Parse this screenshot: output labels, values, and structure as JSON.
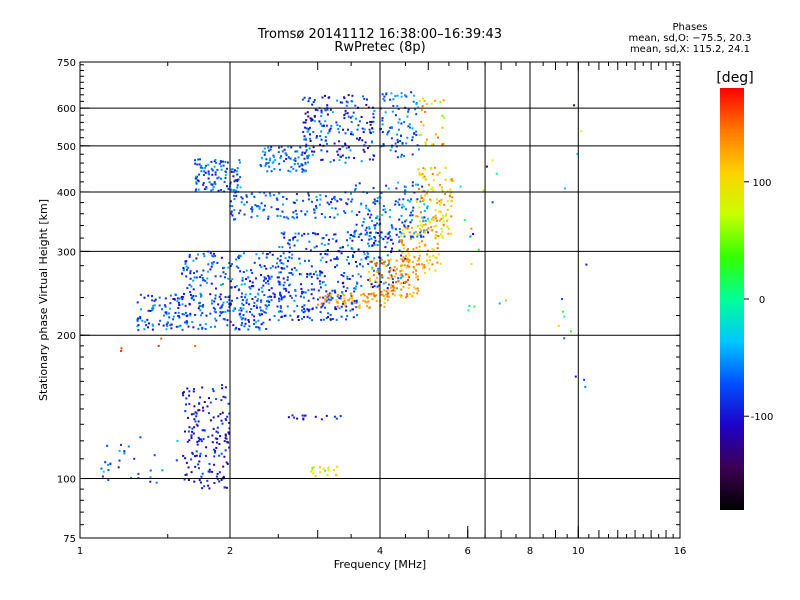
{
  "chart_data": {
    "type": "scatter",
    "title": "Tromsø 20141112 16:38:00–16:39:43",
    "subtitle": "RwPretec (8p)",
    "xlabel": "Frequency [MHz]",
    "ylabel": "Stationary phase Virtual Height [km]",
    "x_scale": "log",
    "y_scale": "log",
    "xlim": [
      1,
      16
    ],
    "ylim": [
      75,
      750
    ],
    "x_ticks": [
      1,
      2,
      4,
      6,
      8,
      10,
      16
    ],
    "y_ticks": [
      75,
      100,
      200,
      300,
      400,
      500,
      600,
      750
    ],
    "x_grid": [
      2,
      4,
      6.5,
      8,
      10
    ],
    "y_grid": [
      100,
      200,
      300,
      400,
      500,
      600
    ],
    "grid": true,
    "colorbar": {
      "label": "[deg]",
      "range": [
        -180,
        180
      ],
      "ticks": [
        100,
        0,
        -100
      ],
      "colors": [
        "#000000",
        "#3c0050",
        "#1e00c8",
        "#0050ff",
        "#00c8ff",
        "#00ff96",
        "#32ff00",
        "#c8ff00",
        "#ffd200",
        "#ff7800",
        "#ff0000"
      ]
    },
    "stats": {
      "heading": "Phases",
      "line_o": "mean, sd,O: −75.5, 20.3",
      "line_x": "mean, sd,X: 115.2, 24.1"
    },
    "clusters": [
      {
        "f": [
          1.3,
          2.4
        ],
        "h": [
          205,
          245
        ],
        "n": 260,
        "phase": [
          -110,
          -40
        ]
      },
      {
        "f": [
          1.6,
          2.6
        ],
        "h": [
          240,
          300
        ],
        "n": 180,
        "phase": [
          -110,
          -40
        ]
      },
      {
        "f": [
          2.4,
          3.6
        ],
        "h": [
          215,
          250
        ],
        "n": 140,
        "phase": [
          -110,
          -50
        ]
      },
      {
        "f": [
          2.5,
          4.5
        ],
        "h": [
          250,
          330
        ],
        "n": 260,
        "phase": [
          -120,
          -40
        ]
      },
      {
        "f": [
          3.0,
          4.2
        ],
        "h": [
          228,
          245
        ],
        "n": 70,
        "phase": [
          110,
          150
        ]
      },
      {
        "f": [
          3.8,
          4.8
        ],
        "h": [
          240,
          290
        ],
        "n": 110,
        "phase": [
          100,
          160
        ]
      },
      {
        "f": [
          4.4,
          5.3
        ],
        "h": [
          270,
          340
        ],
        "n": 90,
        "phase": [
          90,
          150
        ]
      },
      {
        "f": [
          4.7,
          5.6
        ],
        "h": [
          320,
          450
        ],
        "n": 120,
        "phase": [
          60,
          150
        ]
      },
      {
        "f": [
          3.5,
          5.0
        ],
        "h": [
          320,
          420
        ],
        "n": 150,
        "phase": [
          -100,
          -30
        ]
      },
      {
        "f": [
          2.0,
          3.5
        ],
        "h": [
          350,
          400
        ],
        "n": 120,
        "phase": [
          -100,
          -40
        ]
      },
      {
        "f": [
          1.7,
          2.1
        ],
        "h": [
          400,
          470
        ],
        "n": 110,
        "phase": [
          -110,
          -40
        ]
      },
      {
        "f": [
          2.3,
          2.9
        ],
        "h": [
          440,
          500
        ],
        "n": 80,
        "phase": [
          -100,
          -40
        ]
      },
      {
        "f": [
          2.8,
          3.9
        ],
        "h": [
          460,
          640
        ],
        "n": 200,
        "phase": [
          -130,
          -40
        ]
      },
      {
        "f": [
          4.0,
          4.8
        ],
        "h": [
          470,
          650
        ],
        "n": 90,
        "phase": [
          -100,
          -40
        ]
      },
      {
        "f": [
          4.8,
          5.4
        ],
        "h": [
          500,
          630
        ],
        "n": 30,
        "phase": [
          50,
          150
        ]
      },
      {
        "f": [
          1.6,
          2.0
        ],
        "h": [
          95,
          158
        ],
        "n": 170,
        "phase": [
          -130,
          -70
        ]
      },
      {
        "f": [
          1.1,
          1.6
        ],
        "h": [
          98,
          125
        ],
        "n": 30,
        "phase": [
          -100,
          -30
        ]
      },
      {
        "f": [
          2.5,
          3.4
        ],
        "h": [
          133,
          136
        ],
        "n": 15,
        "phase": [
          -110,
          -80
        ]
      },
      {
        "f": [
          2.9,
          3.3
        ],
        "h": [
          101,
          106
        ],
        "n": 18,
        "phase": [
          40,
          120
        ]
      },
      {
        "f": [
          5.8,
          7.2
        ],
        "h": [
          220,
          470
        ],
        "n": 18,
        "phase": [
          -120,
          160
        ]
      },
      {
        "f": [
          9.0,
          11.0
        ],
        "h": [
          130,
          630
        ],
        "n": 14,
        "phase": [
          -150,
          160
        ]
      },
      {
        "f": [
          1.2,
          1.9
        ],
        "h": [
          185,
          200
        ],
        "n": 5,
        "phase": [
          150,
          170
        ]
      }
    ]
  }
}
